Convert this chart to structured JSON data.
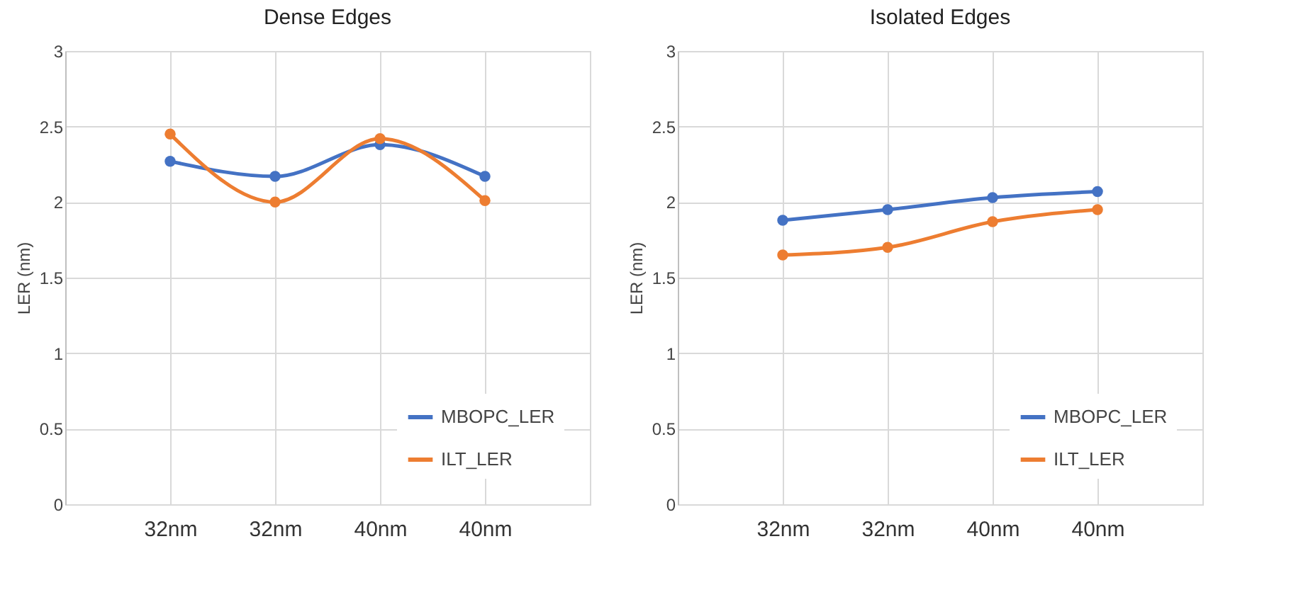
{
  "chart_data": [
    {
      "type": "line",
      "title": "Dense Edges",
      "ylabel": "LER (nm)",
      "categories": [
        "32nm",
        "32nm",
        "40nm",
        "40nm"
      ],
      "ylim": [
        0,
        3
      ],
      "yticks": [
        0,
        0.5,
        1,
        1.5,
        2,
        2.5,
        3
      ],
      "grid": true,
      "legend": "bottom right",
      "marker": "circle",
      "series": [
        {
          "name": "MBOPC_LER",
          "color": "#4472c4",
          "values": [
            2.27,
            2.17,
            2.38,
            2.17
          ]
        },
        {
          "name": "ILT_LER",
          "color": "#ed7d31",
          "values": [
            2.45,
            2.0,
            2.42,
            2.01
          ]
        }
      ]
    },
    {
      "type": "line",
      "title": "Isolated Edges",
      "ylabel": "LER (nm)",
      "categories": [
        "32nm",
        "32nm",
        "40nm",
        "40nm"
      ],
      "ylim": [
        0,
        3
      ],
      "yticks": [
        0,
        0.5,
        1,
        1.5,
        2,
        2.5,
        3
      ],
      "grid": true,
      "legend": "bottom right",
      "marker": "circle",
      "series": [
        {
          "name": "MBOPC_LER",
          "color": "#4472c4",
          "values": [
            1.88,
            1.95,
            2.03,
            2.07
          ]
        },
        {
          "name": "ILT_LER",
          "color": "#ed7d31",
          "values": [
            1.65,
            1.7,
            1.87,
            1.95
          ]
        }
      ]
    }
  ]
}
